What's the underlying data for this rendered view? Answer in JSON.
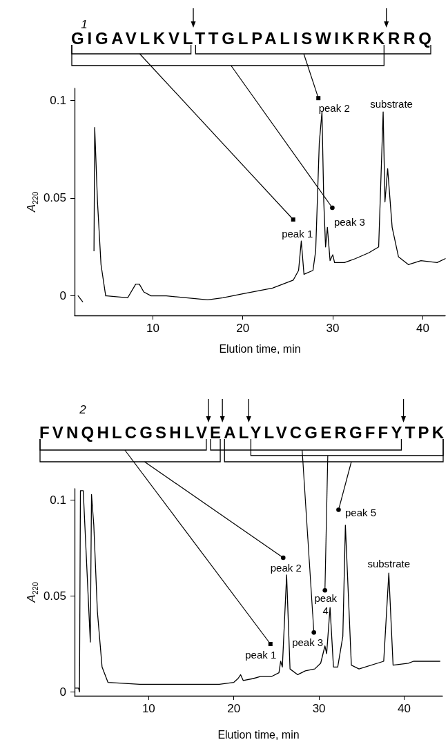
{
  "chart_data": [
    {
      "type": "line",
      "title": "1",
      "xlabel": "Elution time, min",
      "ylabel": "A$_{220}$",
      "color": "#000000",
      "marker": "none",
      "annotations": [
        "GIGAVLKVLTTGLPALISWIKRKRRQ",
        {
          "text": "peak 1",
          "x": 25.6,
          "y": 0.039
        },
        {
          "text": "peak 2",
          "x": 28.4,
          "y": 0.101
        },
        {
          "text": "peak 3",
          "x": 29.95,
          "y": 0.045
        },
        {
          "text": "substrate",
          "x": 35.6,
          "y": 0.094
        }
      ],
      "xlim": [
        1.3,
        42.5
      ],
      "xticks": [
        10,
        20,
        30,
        40
      ],
      "ylim": [
        -0.01,
        0.106
      ],
      "yticks": [
        0,
        0.05,
        0.1
      ],
      "x": [
        1.7,
        2.2,
        2.56,
        2.82,
        3.46,
        3.54,
        3.85,
        4.24,
        4.76,
        4.89,
        7.2,
        8.1,
        8.5,
        9.0,
        9.8,
        11.5,
        16.1,
        17.8,
        19.9,
        21.1,
        23.3,
        25.6,
        26.2,
        26.5,
        26.8,
        27.8,
        28.1,
        28.5,
        28.8,
        29.0,
        29.2,
        29.4,
        29.7,
        30.0,
        30.2,
        31.3,
        32.5,
        34.0,
        35.1,
        35.6,
        35.8,
        36.1,
        36.6,
        37.3,
        38.4,
        39.8,
        41.6,
        42.5
      ],
      "values": [
        0,
        -0.003,
        null,
        null,
        0.023,
        0.086,
        0.048,
        0.016,
        0,
        0,
        -0.001,
        0.006,
        0.006,
        0.002,
        0,
        0,
        -0.002,
        -0.001,
        0.001,
        0.002,
        0.004,
        0.008,
        0.013,
        0.028,
        0.011,
        0.013,
        0.023,
        0.078,
        0.094,
        0.048,
        0.025,
        0.035,
        0.018,
        0.021,
        0.017,
        0.017,
        0.019,
        0.022,
        0.025,
        0.094,
        0.048,
        0.065,
        0.035,
        0.02,
        0.016,
        0.018,
        0.017,
        0.019
      ]
    },
    {
      "type": "line",
      "title": "2",
      "xlabel": "Elution time, min",
      "ylabel": "A$_{220}$",
      "color": "#000000",
      "marker": "none",
      "annotations": [
        "FVNQHLCGSHLVEALYLVCGERGFFYTPK",
        {
          "text": "peak 1",
          "x": 24.3,
          "y": 0.025
        },
        {
          "text": "peak 2",
          "x": 25.8,
          "y": 0.07
        },
        {
          "text": "peak 3",
          "x": 29.4,
          "y": 0.031
        },
        {
          "text": "peak 4",
          "x": 30.7,
          "y": 0.053
        },
        {
          "text": "peak 5",
          "x": 32.3,
          "y": 0.095
        },
        {
          "text": "substrate",
          "x": 38.2,
          "y": 0.062
        }
      ],
      "xlim": [
        1.3,
        44.5
      ],
      "xticks": [
        10,
        20,
        30,
        40
      ],
      "ylim": [
        -0.002,
        0.106
      ],
      "yticks": [
        0,
        0.05,
        0.1
      ],
      "x": [
        1.36,
        1.77,
        1.88,
        1.99,
        2.32,
        3.15,
        3.29,
        3.56,
        3.98,
        4.53,
        5.22,
        8.95,
        18.3,
        20.0,
        20.5,
        20.8,
        21.1,
        22.3,
        23.1,
        24.4,
        25.3,
        25.5,
        25.7,
        26.2,
        26.6,
        27.5,
        28.4,
        29.5,
        30.2,
        30.7,
        30.9,
        31.3,
        31.7,
        32.2,
        32.8,
        33.1,
        33.8,
        34.7,
        37.6,
        38.2,
        38.7,
        40.5,
        41.1,
        44.2
      ],
      "values": [
        0.002,
        0.002,
        0,
        0.105,
        0.105,
        0.026,
        0.103,
        0.087,
        0.042,
        0.013,
        0.005,
        0.004,
        0.004,
        0.005,
        0.007,
        0.009,
        0.006,
        0.007,
        0.008,
        0.008,
        0.01,
        0.016,
        0.013,
        0.061,
        0.012,
        0.009,
        0.011,
        0.012,
        0.015,
        0.024,
        0.02,
        0.044,
        0.013,
        0.013,
        0.029,
        0.087,
        0.014,
        0.012,
        0.016,
        0.062,
        0.014,
        0.015,
        0.016,
        0.016
      ]
    }
  ]
}
